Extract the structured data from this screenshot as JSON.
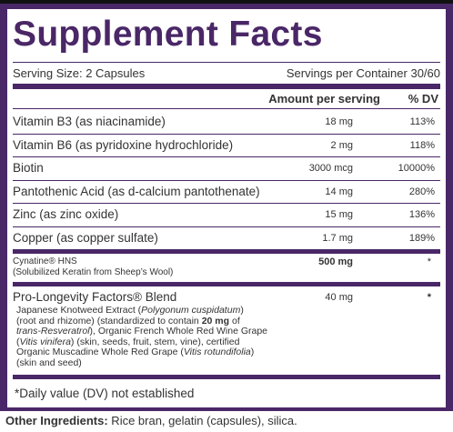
{
  "title": "Supplement Facts",
  "serving_size": "Serving Size: 2 Capsules",
  "servings_per_container": "Servings per Container 30/60",
  "header": {
    "amount": "Amount per serving",
    "dv": "% DV"
  },
  "rows": [
    {
      "name": "Vitamin B3 (as niacinamide)",
      "amount": "18 mg",
      "dv": "113%"
    },
    {
      "name": "Vitamin B6 (as pyridoxine hydrochloride)",
      "amount": "2 mg",
      "dv": "118%"
    },
    {
      "name": "Biotin",
      "amount": "3000 mcg",
      "dv": "10000%"
    },
    {
      "name": "Pantothenic Acid (as d-calcium pantothenate)",
      "amount": "14 mg",
      "dv": "280%"
    },
    {
      "name": "Zinc (as zinc oxide)",
      "amount": "15 mg",
      "dv": "136%"
    },
    {
      "name": "Copper (as copper sulfate)",
      "amount": "1.7 mg",
      "dv": "189%"
    }
  ],
  "cynatine": {
    "name": "Cynatine® HNS",
    "note": "(Solubilized Keratin from Sheep’s Wool)",
    "amount": "500 mg",
    "dv": "*"
  },
  "blend": {
    "name": "Pro-Longevity Factors® Blend",
    "amount": "40 mg",
    "dv": "*",
    "description": [
      [
        {
          "text": "Japanese Knotweed Extract ("
        },
        {
          "text": "Polygonum cuspidatum",
          "style": "italic"
        },
        {
          "text": ")"
        }
      ],
      [
        {
          "text": "(root and rhizome) (standardized to contain "
        },
        {
          "text": "20 mg",
          "style": "bold"
        },
        {
          "text": " of"
        }
      ],
      [
        {
          "text": "trans-Resveratrol",
          "style": "italic"
        },
        {
          "text": "), Organic French Whole Red Wine Grape"
        }
      ],
      [
        {
          "text": "("
        },
        {
          "text": "Vitis vinifera",
          "style": "italic"
        },
        {
          "text": ") (skin, seeds, fruit, stem, vine), certified"
        }
      ],
      [
        {
          "text": "Organic Muscadine Whole Red Grape ("
        },
        {
          "text": "Vitis rotundifolia",
          "style": "italic"
        },
        {
          "text": ")"
        }
      ],
      [
        {
          "text": "(skin and seed)"
        }
      ]
    ]
  },
  "footnote": "*Daily value (DV) not established",
  "other_ingredients": {
    "label": "Other Ingredients:",
    "text": " Rice bran, gelatin (capsules), silica."
  }
}
